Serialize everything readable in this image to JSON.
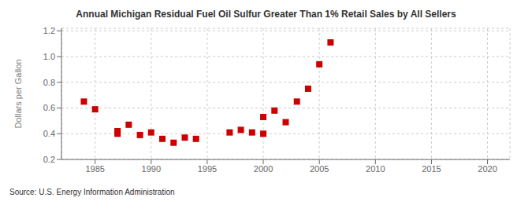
{
  "chart_data": {
    "type": "scatter",
    "title": "Annual Michigan Residual Fuel Oil Sulfur Greater Than 1% Retail Sales by All Sellers",
    "ylabel": "Dollars per Gallon",
    "annotations": [
      "Source: U.S. Energy Information Administration"
    ],
    "color": "#cc0000",
    "marker": "square",
    "grid": true,
    "xlim": [
      1982,
      2022
    ],
    "ylim": [
      0.2,
      1.22
    ],
    "xticks": [
      1985,
      1990,
      1995,
      2000,
      2005,
      2010,
      2015,
      2020
    ],
    "yticks": [
      0.2,
      0.4,
      0.6,
      0.8,
      {
        "value": 1,
        "label": "1.0"
      },
      1.2
    ],
    "x": [
      1984,
      1985,
      1987,
      1987,
      1988,
      1989,
      1990,
      1991,
      1992,
      1993,
      1994,
      1997,
      1998,
      1999,
      2000,
      2000,
      2001,
      2002,
      2003,
      2004,
      2005,
      2006
    ],
    "values": [
      0.65,
      0.59,
      0.4,
      0.42,
      0.47,
      0.39,
      0.41,
      0.36,
      0.33,
      0.37,
      0.36,
      0.41,
      0.43,
      0.41,
      0.4,
      0.53,
      0.58,
      0.49,
      0.65,
      0.75,
      0.94,
      1.11
    ]
  }
}
